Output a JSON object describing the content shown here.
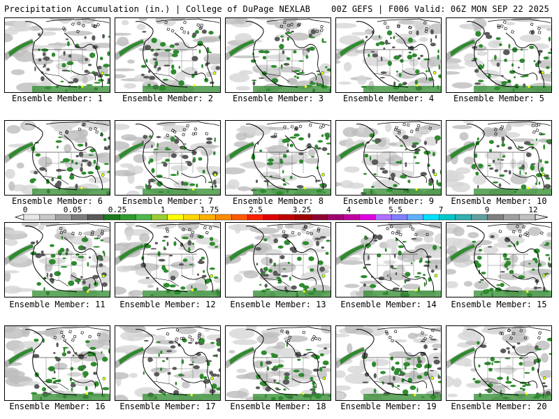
{
  "header": {
    "left": "Precipitation Accumulation (in.) | College of DuPage NEXLAB",
    "right": "00Z GEFS | F006 Valid: 06Z MON SEP 22 2025"
  },
  "panels": [
    {
      "label": "Ensemble Member: 1"
    },
    {
      "label": "Ensemble Member: 2"
    },
    {
      "label": "Ensemble Member: 3"
    },
    {
      "label": "Ensemble Member: 4"
    },
    {
      "label": "Ensemble Member: 5"
    },
    {
      "label": "Ensemble Member: 6"
    },
    {
      "label": "Ensemble Member: 7"
    },
    {
      "label": "Ensemble Member: 8"
    },
    {
      "label": "Ensemble Member: 9"
    },
    {
      "label": "Ensemble Member: 10"
    },
    {
      "label": "Ensemble Member: 11"
    },
    {
      "label": "Ensemble Member: 12"
    },
    {
      "label": "Ensemble Member: 13"
    },
    {
      "label": "Ensemble Member: 14"
    },
    {
      "label": "Ensemble Member: 15"
    },
    {
      "label": "Ensemble Member: 16"
    },
    {
      "label": "Ensemble Member: 17"
    },
    {
      "label": "Ensemble Member: 18"
    },
    {
      "label": "Ensemble Member: 19"
    },
    {
      "label": "Ensemble Member: 20"
    }
  ],
  "colorbar": {
    "tick_labels": [
      "0",
      "0.05",
      "0.25",
      "1",
      "1.75",
      "2.5",
      "3.25",
      "4",
      "5.5",
      "7",
      "9",
      "12"
    ],
    "colors": [
      "#e6e6e6",
      "#c8c8c8",
      "#a0a0a0",
      "#7d7d7d",
      "#5a5a5a",
      "#1e7a1e",
      "#2e9a2e",
      "#4cb84c",
      "#9acd32",
      "#ffff00",
      "#ffd700",
      "#ffb000",
      "#ff8c00",
      "#ff5a00",
      "#ff2000",
      "#e00000",
      "#c00000",
      "#a00000",
      "#900030",
      "#a00070",
      "#c000a0",
      "#e000e0",
      "#b070ff",
      "#7f7fff",
      "#5fb0ff",
      "#00e0ff",
      "#00c8c8",
      "#30b0b0",
      "#60a0a0",
      "#808080",
      "#a0a0a0",
      "#c0c0c0"
    ]
  }
}
